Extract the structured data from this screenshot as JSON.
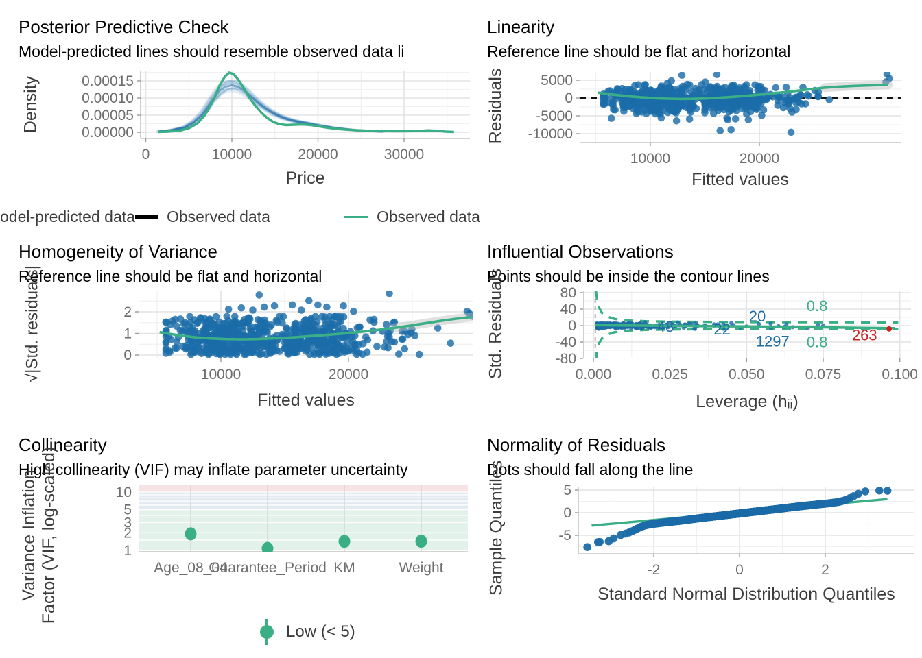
{
  "palette": {
    "blue": "#1b6ca8",
    "green": "#3aaf85",
    "red": "#cd201f",
    "black": "#000000",
    "axis_title": "#3d3d3d",
    "tick_text": "#6e6e6e",
    "grid_major": "#e3e3e3",
    "grid_minor": "#f1f1f1",
    "axis_line": "#c4c4c4",
    "ref_dash": "#111111",
    "grey_dash": "#9a9a9a",
    "band_grey": "#bdbdbd",
    "band_low": "#e2f1ea",
    "band_moderate": "#e2eaf2",
    "band_high": "#f7e3e3"
  },
  "ppc_legend": {
    "items": [
      {
        "label": "odel-predicted data",
        "swatch": "none"
      },
      {
        "label": "Observed data",
        "swatch": "black-line"
      },
      {
        "label": "Observed data",
        "swatch": "green-line"
      }
    ]
  },
  "vif_legend": {
    "label": "Low (< 5)"
  },
  "chart_data": [
    {
      "id": "ppc",
      "type": "density",
      "title": "Posterior Predictive Check",
      "subtitle": "Model-predicted lines should resemble observed data li",
      "xlabel": "Price",
      "ylabel": "Density",
      "x_ticks": {
        "values": [
          0,
          10000,
          20000,
          30000
        ],
        "labels": [
          "0",
          "10000",
          "20000",
          "30000"
        ]
      },
      "y_ticks": {
        "values": [
          0,
          5e-05,
          0.0001,
          0.00015
        ],
        "labels": [
          "0.00000",
          "0.00005",
          "0.00010",
          "0.00015"
        ]
      },
      "xlim": [
        -600,
        37700
      ],
      "ylim": [
        0,
        0.00018
      ],
      "n_sim_lines": 12,
      "observed": [
        [
          1400,
          1e-06
        ],
        [
          2600,
          2e-06
        ],
        [
          4000,
          5e-06
        ],
        [
          5000,
          1.2e-05
        ],
        [
          6000,
          2.6e-05
        ],
        [
          6800,
          4.8e-05
        ],
        [
          7400,
          7.2e-05
        ],
        [
          8000,
          0.000102
        ],
        [
          8600,
          0.000138
        ],
        [
          9200,
          0.000163
        ],
        [
          9700,
          0.000174
        ],
        [
          10200,
          0.00017
        ],
        [
          10800,
          0.000152
        ],
        [
          11400,
          0.000128
        ],
        [
          12000,
          0.000102
        ],
        [
          12700,
          7.8e-05
        ],
        [
          13400,
          5.8e-05
        ],
        [
          14100,
          4.2e-05
        ],
        [
          14800,
          3e-05
        ],
        [
          15500,
          2.4e-05
        ],
        [
          16300,
          2.1e-05
        ],
        [
          17200,
          2.2e-05
        ],
        [
          18200,
          2.3e-05
        ],
        [
          19200,
          2.1e-05
        ],
        [
          20200,
          1.7e-05
        ],
        [
          21200,
          1.3e-05
        ],
        [
          22200,
          1e-05
        ],
        [
          23400,
          7.5e-06
        ],
        [
          24600,
          5.5e-06
        ],
        [
          26000,
          4.2e-06
        ],
        [
          27500,
          3.5e-06
        ],
        [
          29000,
          3e-06
        ],
        [
          30500,
          3.2e-06
        ],
        [
          31800,
          4e-06
        ],
        [
          32800,
          5.5e-06
        ],
        [
          33900,
          4.5e-06
        ],
        [
          34800,
          2e-06
        ],
        [
          35800,
          1e-06
        ]
      ],
      "predicted": [
        [
          1500,
          2e-06
        ],
        [
          3000,
          6e-06
        ],
        [
          4500,
          1.4e-05
        ],
        [
          5500,
          2.8e-05
        ],
        [
          6500,
          5e-05
        ],
        [
          7200,
          7.4e-05
        ],
        [
          7900,
          0.0001
        ],
        [
          8600,
          0.000121
        ],
        [
          9300,
          0.000133
        ],
        [
          10000,
          0.000137
        ],
        [
          10700,
          0.000133
        ],
        [
          11400,
          0.000122
        ],
        [
          12200,
          0.000105
        ],
        [
          13000,
          8.7e-05
        ],
        [
          13900,
          7e-05
        ],
        [
          14800,
          5.6e-05
        ],
        [
          15800,
          4.4e-05
        ],
        [
          16800,
          3.6e-05
        ],
        [
          17800,
          3e-05
        ],
        [
          18800,
          2.6e-05
        ],
        [
          19800,
          2.1e-05
        ],
        [
          20800,
          1.7e-05
        ],
        [
          21800,
          1.3e-05
        ],
        [
          23000,
          9.5e-06
        ],
        [
          24200,
          6.5e-06
        ],
        [
          25400,
          4.5e-06
        ],
        [
          26600,
          3e-06
        ],
        [
          27600,
          2e-06
        ]
      ]
    },
    {
      "id": "linearity",
      "type": "scatter_smooth",
      "title": "Linearity",
      "subtitle": "Reference line should be flat and horizontal",
      "xlabel": "Fitted values",
      "ylabel": "Residuals",
      "x_ticks": {
        "values": [
          10000,
          20000
        ],
        "labels": [
          "10000",
          "20000"
        ]
      },
      "y_ticks": {
        "values": [
          5000,
          0,
          -5000,
          -10000
        ],
        "labels": [
          "5000",
          "0",
          "-5000",
          "-10000"
        ]
      },
      "zero_line": 0,
      "cloud": {
        "n": 660,
        "seed": 7,
        "clusters": [
          {
            "p": 0.58,
            "mu": 10800,
            "sd": 2500,
            "lo": 5700,
            "hi": 15800
          },
          {
            "p": 0.24,
            "mu": 16900,
            "sd": 1200,
            "lo": 15000,
            "hi": 19600
          },
          {
            "p": 0.13,
            "mu": 18900,
            "sd": 900,
            "lo": 17600,
            "hi": 21500
          },
          {
            "p": 0.05,
            "mu": 22500,
            "sd": 1500,
            "lo": 20500,
            "hi": 26000
          }
        ],
        "y": {
          "mu": -250,
          "sd": 1850,
          "lo": -6400,
          "hi": 6300
        }
      },
      "outliers": [
        [
          16400,
          -9200
        ],
        [
          17400,
          -8900
        ],
        [
          22900,
          -9600
        ],
        [
          12900,
          6400
        ],
        [
          16100,
          6600
        ],
        [
          13600,
          -5900
        ],
        [
          12400,
          -6400
        ],
        [
          11000,
          -5600
        ],
        [
          31700,
          6800
        ],
        [
          31900,
          5500
        ],
        [
          31600,
          4500
        ],
        [
          21500,
          2900
        ],
        [
          22600,
          1300
        ],
        [
          23600,
          -1100
        ],
        [
          22200,
          -2700
        ],
        [
          24400,
          900
        ],
        [
          25400,
          1700
        ],
        [
          26400,
          -500
        ]
      ],
      "smooth": [
        [
          5200,
          1500
        ],
        [
          6600,
          950
        ],
        [
          8000,
          500
        ],
        [
          9200,
          180
        ],
        [
          10400,
          -60
        ],
        [
          11600,
          -200
        ],
        [
          12800,
          -260
        ],
        [
          14000,
          -230
        ],
        [
          15200,
          -120
        ],
        [
          16400,
          80
        ],
        [
          17600,
          330
        ],
        [
          18800,
          620
        ],
        [
          20000,
          950
        ],
        [
          21200,
          1300
        ],
        [
          22400,
          1680
        ],
        [
          23600,
          2080
        ],
        [
          24800,
          2500
        ],
        [
          26000,
          2930
        ],
        [
          27200,
          3150
        ],
        [
          28400,
          3350
        ],
        [
          29600,
          3500
        ],
        [
          30800,
          3620
        ],
        [
          31800,
          3720
        ]
      ],
      "band_from_x": 25000
    },
    {
      "id": "homogeneity",
      "type": "scatter_smooth",
      "title": "Homogeneity of Variance",
      "subtitle": "Reference line should be flat and horizontal",
      "xlabel": "Fitted values",
      "ylabel": "√|Std. residuals|",
      "x_ticks": {
        "values": [
          10000,
          20000
        ],
        "labels": [
          "10000",
          "20000"
        ]
      },
      "y_ticks": {
        "values": [
          0,
          1,
          2
        ],
        "labels": [
          "0",
          "1",
          "2"
        ]
      },
      "cloud": {
        "n": 660,
        "seed": 11,
        "clusters": [
          {
            "p": 0.58,
            "mu": 10800,
            "sd": 2500,
            "lo": 5700,
            "hi": 15800
          },
          {
            "p": 0.24,
            "mu": 16900,
            "sd": 1200,
            "lo": 15000,
            "hi": 19600
          },
          {
            "p": 0.13,
            "mu": 18900,
            "sd": 900,
            "lo": 17600,
            "hi": 21500
          },
          {
            "p": 0.05,
            "mu": 22500,
            "sd": 1500,
            "lo": 20500,
            "hi": 26000
          }
        ],
        "y": {
          "mu": 0.8,
          "sd": 0.52,
          "lo": 0.03,
          "hi": 1.78,
          "abs": true
        }
      },
      "outliers": [
        [
          13000,
          2.78
        ],
        [
          23200,
          2.85
        ],
        [
          10600,
          2.12
        ],
        [
          11600,
          2.18
        ],
        [
          12500,
          2.08
        ],
        [
          13400,
          2.22
        ],
        [
          14200,
          2.28
        ],
        [
          15600,
          2.32
        ],
        [
          16300,
          2.08
        ],
        [
          16900,
          2.52
        ],
        [
          17600,
          2.32
        ],
        [
          18300,
          2.22
        ],
        [
          19600,
          2.28
        ],
        [
          20400,
          2.02
        ],
        [
          29300,
          2.02
        ],
        [
          29500,
          1.9
        ],
        [
          29700,
          1.8
        ],
        [
          22000,
          1.52
        ],
        [
          24200,
          1.1
        ],
        [
          25200,
          0.9
        ],
        [
          23400,
          0.62
        ],
        [
          27000,
          1.25
        ],
        [
          28000,
          0.55
        ]
      ],
      "smooth": [
        [
          5200,
          1.06
        ],
        [
          6600,
          0.92
        ],
        [
          8000,
          0.82
        ],
        [
          9200,
          0.77
        ],
        [
          10400,
          0.74
        ],
        [
          11600,
          0.73
        ],
        [
          12800,
          0.74
        ],
        [
          14000,
          0.77
        ],
        [
          15200,
          0.8
        ],
        [
          16400,
          0.85
        ],
        [
          17600,
          0.9
        ],
        [
          18800,
          0.96
        ],
        [
          20000,
          1.02
        ],
        [
          21200,
          1.09
        ],
        [
          22400,
          1.17
        ],
        [
          23600,
          1.26
        ],
        [
          24800,
          1.36
        ],
        [
          26000,
          1.47
        ],
        [
          27200,
          1.58
        ],
        [
          28400,
          1.68
        ],
        [
          29600,
          1.76
        ]
      ],
      "band_from_x": 23000
    },
    {
      "id": "influential",
      "type": "leverage",
      "title": "Influential Observations",
      "subtitle": "Points should be inside the contour lines",
      "xlabel": "Leverage (hᵢᵢ)",
      "ylabel": "Std. Residuals",
      "x_ticks": {
        "values": [
          0,
          0.025,
          0.05,
          0.075,
          0.1
        ],
        "labels": [
          "0.000",
          "0.025",
          "0.050",
          "0.075",
          "0.100"
        ]
      },
      "y_ticks": {
        "values": [
          80,
          40,
          0,
          -40,
          -80
        ],
        "labels": [
          "80",
          "40",
          "0",
          "-40",
          "-80"
        ]
      },
      "vline_x": 0.0006,
      "contour_upper": [
        [
          0.0008,
          85
        ],
        [
          0.0012,
          62
        ],
        [
          0.0018,
          44
        ],
        [
          0.0028,
          31
        ],
        [
          0.0045,
          22
        ],
        [
          0.007,
          16
        ],
        [
          0.011,
          12.5
        ],
        [
          0.017,
          10.5
        ],
        [
          0.025,
          9.5
        ],
        [
          0.04,
          8.8
        ],
        [
          0.06,
          8.3
        ],
        [
          0.08,
          8.0
        ],
        [
          0.0995,
          7.8
        ]
      ],
      "solid": [
        [
          0.0006,
          1.2
        ],
        [
          0.01,
          0.4
        ],
        [
          0.02,
          -0.2
        ],
        [
          0.03,
          -0.9
        ],
        [
          0.045,
          -1.8
        ],
        [
          0.06,
          -3.0
        ],
        [
          0.075,
          -4.2
        ],
        [
          0.09,
          -5.6
        ],
        [
          0.0985,
          -6.3
        ]
      ],
      "cloud": {
        "n": 430,
        "seed": 5,
        "x_base": 0.0012,
        "x_pow": 1.7,
        "x_scale": 0.01,
        "x_max": 0.075,
        "y_sd": 2.8,
        "y_max": 8.5
      },
      "extra_points": [
        [
          0.048,
          -5
        ],
        [
          0.054,
          4
        ],
        [
          0.058,
          -6
        ],
        [
          0.0425,
          -8
        ],
        [
          0.065,
          -4
        ],
        [
          0.07,
          -6
        ],
        [
          0.063,
          3
        ],
        [
          0.045,
          6
        ],
        [
          0.05,
          -2
        ]
      ],
      "red_point": [
        0.0965,
        -8
      ],
      "labels": [
        {
          "text": "48",
          "x": 0.0235,
          "y": -3,
          "color": "#1b6ca8"
        },
        {
          "text": "22",
          "x": 0.042,
          "y": -10,
          "color": "#1b6ca8"
        },
        {
          "text": "20",
          "x": 0.0535,
          "y": 22,
          "color": "#1b6ca8"
        },
        {
          "text": "1297",
          "x": 0.0585,
          "y": -39,
          "color": "#1b6ca8"
        },
        {
          "text": "0.8",
          "x": 0.073,
          "y": 47,
          "color": "#3aaf85"
        },
        {
          "text": "0.8",
          "x": 0.073,
          "y": -41,
          "color": "#3aaf85"
        },
        {
          "text": "263",
          "x": 0.0885,
          "y": -24,
          "color": "#cd201f"
        }
      ]
    },
    {
      "id": "collinearity",
      "type": "vif",
      "title": "Collinearity",
      "subtitle": "High collinearity (VIF) may inflate parameter uncertainty",
      "xlabel": "",
      "ylabel": "Variance Inflation\nFactor (VIF, log-scaled)",
      "categories": [
        "Age_08_04",
        "Guarantee_Period",
        "KM",
        "Weight"
      ],
      "values": [
        1.92,
        1.08,
        1.43,
        1.44
      ],
      "y_ticks": {
        "values": [
          1,
          2,
          3,
          5,
          10
        ],
        "labels": [
          "1",
          "2",
          "3",
          "5",
          "10"
        ]
      },
      "bands": {
        "low": [
          1,
          5
        ],
        "moderate": [
          5,
          10
        ],
        "high": [
          10,
          13.1
        ]
      }
    },
    {
      "id": "qq",
      "type": "qq",
      "title": "Normality of Residuals",
      "subtitle": "Dots should fall along the line",
      "xlabel": "Standard Normal Distribution Quantiles",
      "ylabel": "Sample Quantiles",
      "x_ticks": {
        "values": [
          -2,
          0,
          2
        ],
        "labels": [
          "-2",
          "0",
          "2"
        ]
      },
      "y_ticks": {
        "values": [
          5,
          0,
          -5
        ],
        "labels": [
          "5",
          "0",
          "-5"
        ]
      },
      "n_points": 900,
      "waypoints": [
        [
          -3.55,
          -7.6
        ],
        [
          -3.3,
          -6.5
        ],
        [
          -3.05,
          -6.3
        ],
        [
          -2.92,
          -5.6
        ],
        [
          -2.8,
          -5.0
        ],
        [
          -2.68,
          -4.7
        ],
        [
          -2.55,
          -4.3
        ],
        [
          -2.42,
          -3.7
        ],
        [
          -2.3,
          -3.1
        ],
        [
          -2.15,
          -2.7
        ],
        [
          -2.0,
          -2.45
        ],
        [
          -1.7,
          -2.1
        ],
        [
          -1.4,
          -1.8
        ],
        [
          -1.0,
          -1.3
        ],
        [
          -0.6,
          -0.85
        ],
        [
          -0.2,
          -0.4
        ],
        [
          0.2,
          0.05
        ],
        [
          0.6,
          0.5
        ],
        [
          1.0,
          0.95
        ],
        [
          1.4,
          1.4
        ],
        [
          1.8,
          1.8
        ],
        [
          2.1,
          2.1
        ],
        [
          2.3,
          2.35
        ],
        [
          2.45,
          2.7
        ],
        [
          2.55,
          3.1
        ],
        [
          2.65,
          3.6
        ],
        [
          2.75,
          4.1
        ],
        [
          2.85,
          4.5
        ],
        [
          2.95,
          4.75
        ],
        [
          3.1,
          4.85
        ],
        [
          3.3,
          4.9
        ],
        [
          3.45,
          4.85
        ]
      ],
      "extreme_points": [
        [
          -3.55,
          -7.6
        ],
        [
          -3.3,
          -6.5
        ],
        [
          -3.05,
          -6.3
        ],
        [
          3.45,
          4.85
        ]
      ],
      "line": [
        [
          -3.45,
          -2.85
        ],
        [
          3.45,
          3.0
        ]
      ]
    }
  ]
}
